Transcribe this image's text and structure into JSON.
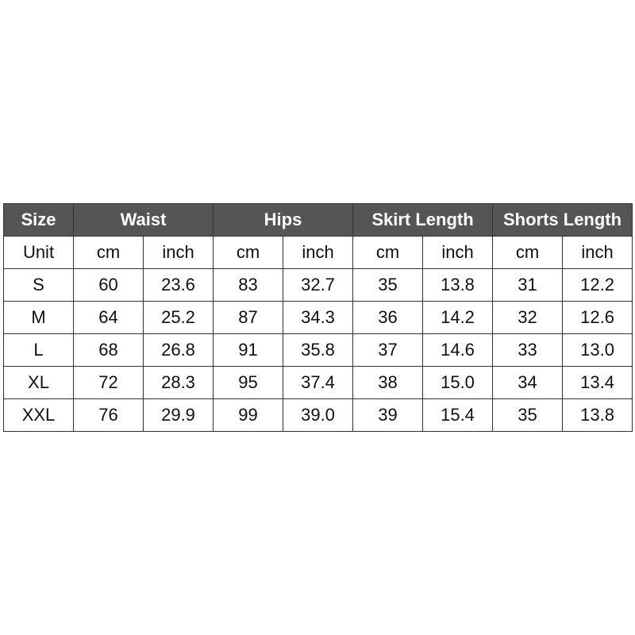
{
  "header": [
    "Size",
    "Waist",
    "Hips",
    "Skirt Length",
    "Shorts Length"
  ],
  "units": [
    "Unit",
    "cm",
    "inch",
    "cm",
    "inch",
    "cm",
    "inch",
    "cm",
    "inch"
  ],
  "rows": [
    [
      "S",
      "60",
      "23.6",
      "83",
      "32.7",
      "35",
      "13.8",
      "31",
      "12.2"
    ],
    [
      "M",
      "64",
      "25.2",
      "87",
      "34.3",
      "36",
      "14.2",
      "32",
      "12.6"
    ],
    [
      "L",
      "68",
      "26.8",
      "91",
      "35.8",
      "37",
      "14.6",
      "33",
      "13.0"
    ],
    [
      "XL",
      "72",
      "28.3",
      "95",
      "37.4",
      "38",
      "15.0",
      "34",
      "13.4"
    ],
    [
      "XXL",
      "76",
      "29.9",
      "99",
      "39.0",
      "39",
      "15.4",
      "35",
      "13.8"
    ]
  ],
  "colors": {
    "header_bg": "#555555",
    "header_text": "#ffffff"
  }
}
